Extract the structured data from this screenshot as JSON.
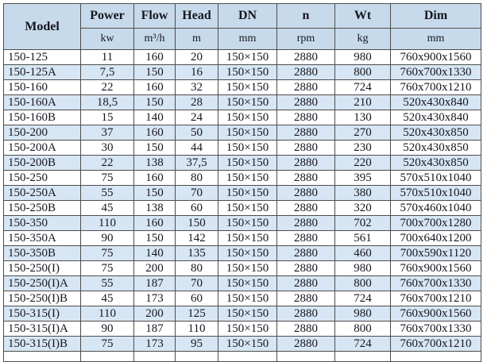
{
  "chart_data": {
    "type": "table",
    "columns": [
      {
        "key": "model",
        "label": "Model",
        "unit": ""
      },
      {
        "key": "power",
        "label": "Power",
        "unit": "kw"
      },
      {
        "key": "flow",
        "label": "Flow",
        "unit": "m³/h"
      },
      {
        "key": "head",
        "label": "Head",
        "unit": "m"
      },
      {
        "key": "dn",
        "label": "DN",
        "unit": "mm"
      },
      {
        "key": "n",
        "label": "n",
        "unit": "rpm"
      },
      {
        "key": "wt",
        "label": "Wt",
        "unit": "kg"
      },
      {
        "key": "dim",
        "label": "Dim",
        "unit": "mm"
      }
    ],
    "rows": [
      [
        "150-125",
        "11",
        "160",
        "20",
        "150×150",
        "2880",
        "980",
        "760x900x1560"
      ],
      [
        "150-125A",
        "7,5",
        "150",
        "16",
        "150×150",
        "2880",
        "800",
        "760x700x1330"
      ],
      [
        "150-160",
        "22",
        "160",
        "32",
        "150×150",
        "2880",
        "724",
        "760x700x1210"
      ],
      [
        "150-160A",
        "18,5",
        "150",
        "28",
        "150×150",
        "2880",
        "210",
        "520x430x840"
      ],
      [
        "150-160B",
        "15",
        "140",
        "24",
        "150×150",
        "2880",
        "130",
        "520x430x840"
      ],
      [
        "150-200",
        "37",
        "160",
        "50",
        "150×150",
        "2880",
        "270",
        "520x430x850"
      ],
      [
        "150-200A",
        "30",
        "150",
        "44",
        "150×150",
        "2880",
        "230",
        "520x430x850"
      ],
      [
        "150-200B",
        "22",
        "138",
        "37,5",
        "150×150",
        "2880",
        "220",
        "520x430x850"
      ],
      [
        "150-250",
        "75",
        "160",
        "80",
        "150×150",
        "2880",
        "395",
        "570x510x1040"
      ],
      [
        "150-250A",
        "55",
        "150",
        "70",
        "150×150",
        "2880",
        "380",
        "570x510x1040"
      ],
      [
        "150-250B",
        "45",
        "138",
        "60",
        "150×150",
        "2880",
        "320",
        "570x460x1040"
      ],
      [
        "150-350",
        "110",
        "160",
        "150",
        "150×150",
        "2880",
        "702",
        "700x700x1280"
      ],
      [
        "150-350A",
        "90",
        "150",
        "142",
        "150×150",
        "2880",
        "561",
        "700x640x1200"
      ],
      [
        "150-350B",
        "75",
        "140",
        "135",
        "150×150",
        "2880",
        "460",
        "700x590x1120"
      ],
      [
        "150-250(I)",
        "75",
        "200",
        "80",
        "150×150",
        "2880",
        "980",
        "760x900x1560"
      ],
      [
        "150-250(I)A",
        "55",
        "187",
        "70",
        "150×150",
        "2880",
        "800",
        "760x700x1330"
      ],
      [
        "150-250(I)B",
        "45",
        "173",
        "60",
        "150×150",
        "2880",
        "724",
        "760x700x1210"
      ],
      [
        "150-315(I)",
        "110",
        "200",
        "125",
        "150×150",
        "2880",
        "980",
        "760x900x1560"
      ],
      [
        "150-315(I)A",
        "90",
        "187",
        "110",
        "150×150",
        "2880",
        "800",
        "760x700x1330"
      ],
      [
        "150-315(I)B",
        "75",
        "173",
        "95",
        "150×150",
        "2880",
        "724",
        "760x700x1210"
      ]
    ],
    "layout": {
      "grid": true,
      "legend": "none",
      "header_rows": 2
    }
  },
  "colors": {
    "header_bg": "#c7daeb",
    "row_bg": "#ffffff",
    "row_alt_bg": "#d7e6f4",
    "border": "#4d4d4d",
    "text": "#16161e"
  }
}
